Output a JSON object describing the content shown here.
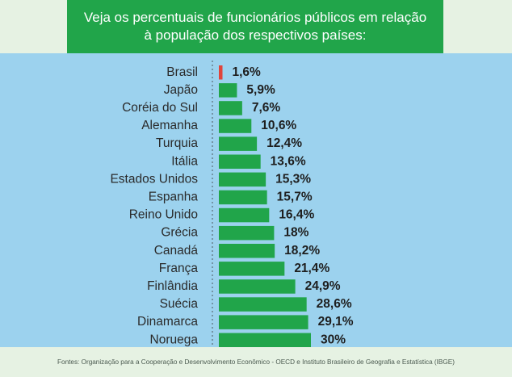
{
  "header": {
    "title": "Veja os percentuais de funcionários públicos em relação à população dos respectivos países:"
  },
  "footer": {
    "source": "Fontes: Organização para a Cooperação e Desenvolvimento Econômico - OECD e Instituto Brasileiro de Geografia e Estatística (IBGE)"
  },
  "colors": {
    "bar": "#21a54a",
    "highlight_bar": "#e0443c",
    "background": "#9fd3ef",
    "header": "#21a54a"
  },
  "chart_data": {
    "type": "bar",
    "orientation": "horizontal",
    "categories": [
      "Brasil",
      "Japão",
      "Coréia do Sul",
      "Alemanha",
      "Turquia",
      "Itália",
      "Estados Unidos",
      "Espanha",
      "Reino Unido",
      "Grécia",
      "Canadá",
      "França",
      "Finlândia",
      "Suécia",
      "Dinamarca",
      "Noruega"
    ],
    "values": [
      1.6,
      5.9,
      7.6,
      10.6,
      12.4,
      13.6,
      15.3,
      15.7,
      16.4,
      18,
      18.2,
      21.4,
      24.9,
      28.6,
      29.1,
      30
    ],
    "value_labels": [
      "1,6%",
      "5,9%",
      "7,6%",
      "10,6%",
      "12,4%",
      "13,6%",
      "15,3%",
      "15,7%",
      "16,4%",
      "18%",
      "18,2%",
      "21,4%",
      "24,9%",
      "28,6%",
      "29,1%",
      "30%"
    ],
    "highlight_category": "Brasil",
    "title": "",
    "xlabel": "",
    "ylabel": "",
    "xlim": [
      0,
      30
    ],
    "grid": false,
    "legend": "none"
  }
}
